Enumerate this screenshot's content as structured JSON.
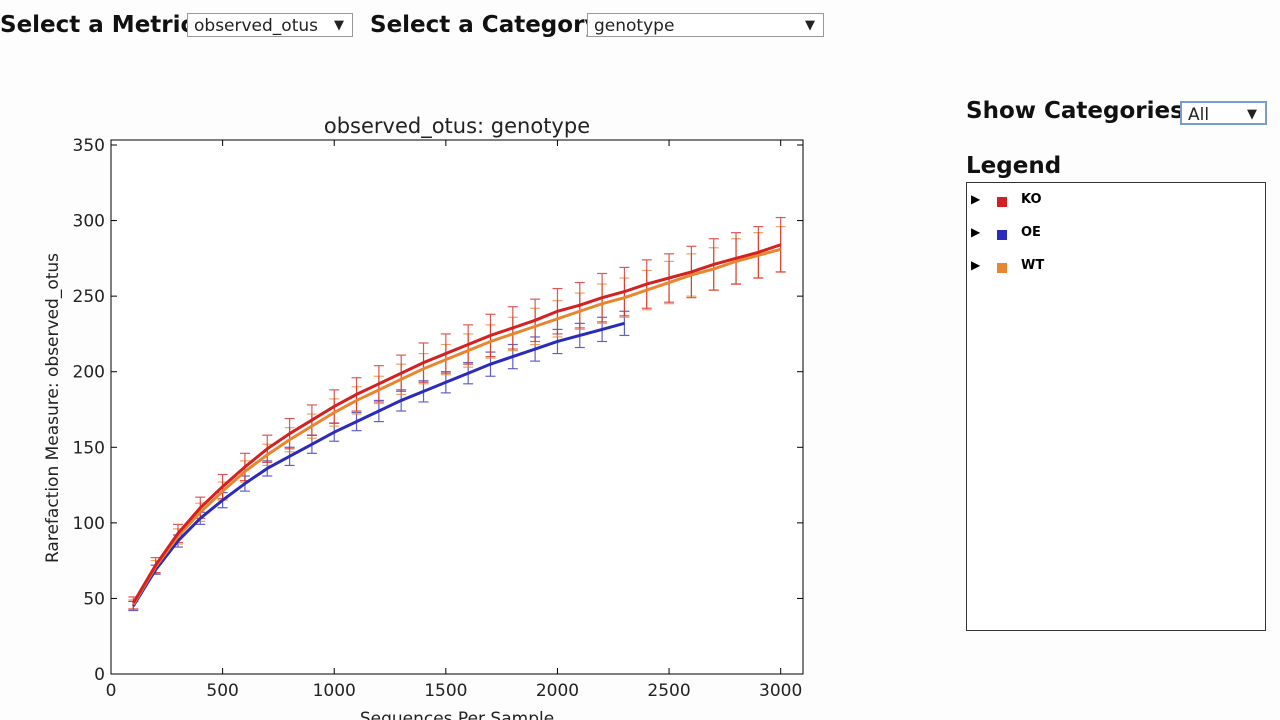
{
  "controls": {
    "metric_label": "Select a Metric:",
    "metric_value": "observed_otus",
    "category_label": "Select a Category:",
    "category_value": "genotype",
    "show_label": "Show Categories:",
    "show_value": "All",
    "legend_title": "Legend"
  },
  "chart_data": {
    "type": "line",
    "title": "observed_otus: genotype",
    "x_label": "Sequences Per Sample",
    "y_label": "Rarefaction Measure: observed_otus",
    "x": [
      100,
      200,
      300,
      400,
      500,
      600,
      700,
      800,
      900,
      1000,
      1100,
      1200,
      1300,
      1400,
      1500,
      1600,
      1700,
      1800,
      1900,
      2000,
      2100,
      2200,
      2300,
      2400,
      2500,
      2600,
      2700,
      2800,
      2900,
      3000
    ],
    "series": [
      {
        "name": "KO",
        "color": "#d42020",
        "values": [
          47,
          72,
          93,
          110,
          124,
          137,
          149,
          159,
          168,
          177,
          185,
          192,
          199,
          206,
          212,
          218,
          224,
          229,
          234,
          240,
          244,
          249,
          253,
          258,
          262,
          266,
          271,
          275,
          279,
          284
        ],
        "errors": [
          4,
          5,
          6,
          7,
          8,
          9,
          9,
          10,
          10,
          11,
          11,
          12,
          12,
          13,
          13,
          13,
          14,
          14,
          14,
          15,
          15,
          16,
          16,
          16,
          16,
          17,
          17,
          17,
          17,
          18
        ]
      },
      {
        "name": "OE",
        "color": "#2b2bbb",
        "values": [
          45,
          69,
          88,
          103,
          115,
          126,
          136,
          144,
          152,
          160,
          167,
          174,
          181,
          187,
          193,
          199,
          205,
          210,
          215,
          220,
          224,
          228,
          232,
          null,
          null,
          null,
          null,
          null,
          null,
          null
        ],
        "errors": [
          3,
          3,
          4,
          4,
          5,
          5,
          5,
          6,
          6,
          6,
          6,
          7,
          7,
          7,
          7,
          7,
          8,
          8,
          8,
          8,
          8,
          8,
          8,
          null,
          null,
          null,
          null,
          null,
          null,
          null
        ]
      },
      {
        "name": "WT",
        "color": "#e8852e",
        "values": [
          46,
          71,
          91,
          107,
          121,
          134,
          145,
          155,
          164,
          173,
          181,
          188,
          195,
          202,
          208,
          214,
          220,
          225,
          230,
          235,
          240,
          245,
          249,
          254,
          259,
          264,
          268,
          273,
          277,
          281
        ],
        "errors": [
          3,
          4,
          5,
          6,
          6,
          7,
          7,
          8,
          8,
          9,
          9,
          9,
          10,
          10,
          10,
          11,
          11,
          11,
          12,
          12,
          12,
          13,
          13,
          13,
          14,
          14,
          14,
          15,
          15,
          15
        ]
      }
    ],
    "xlim": [
      0,
      3100
    ],
    "xticks": [
      0,
      500,
      1000,
      1500,
      2000,
      2500,
      3000
    ],
    "ylim": [
      0,
      350
    ],
    "yticks": [
      0,
      50,
      100,
      150,
      200,
      250,
      300,
      350
    ]
  }
}
